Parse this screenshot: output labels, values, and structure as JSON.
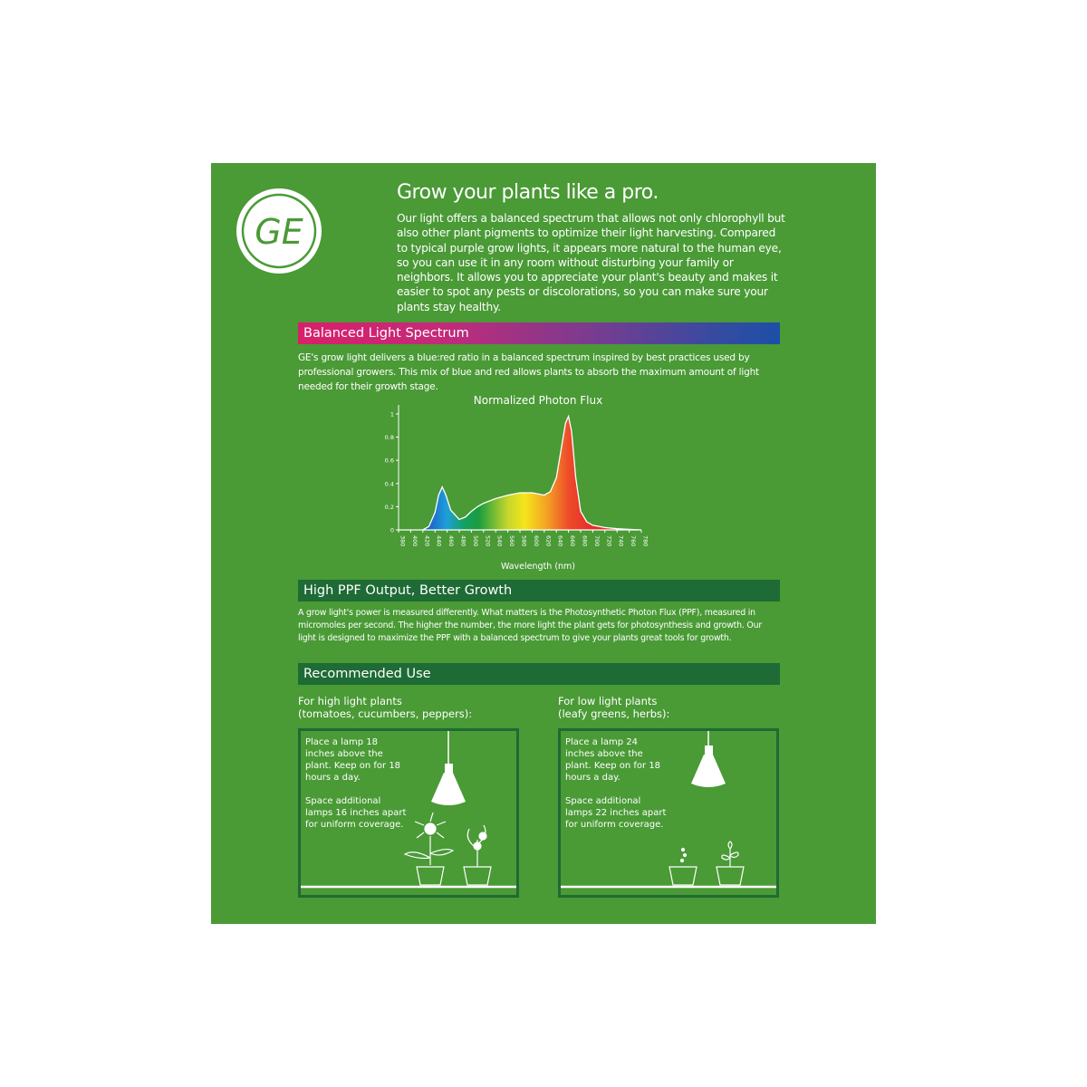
{
  "logo": {
    "text": "GE"
  },
  "header": {
    "title": "Grow your plants like a pro.",
    "intro": "Our light offers a balanced spectrum that allows not only chlorophyll but also other plant pigments to optimize their light harvesting. Compared to typical purple grow lights, it appears more natural to the human eye, so you can use it in any room without disturbing your family or neighbors. It allows you to appreciate your plant's beauty and makes it easier to spot any pests or discolorations, so you can make sure your plants stay healthy."
  },
  "spectrum": {
    "heading": "Balanced Light Spectrum",
    "text": "GE's grow light delivers a blue:red ratio in a balanced spectrum inspired by best practices used by professional growers. This mix of blue and red allows plants to absorb the maximum amount of light needed for their growth stage."
  },
  "chart_data": {
    "type": "area",
    "title": "Normalized Photon Flux",
    "xlabel": "Wavelength (nm)",
    "ylabel": "",
    "xlim": [
      380,
      780
    ],
    "ylim": [
      0,
      1.05
    ],
    "xticks": [
      380,
      400,
      420,
      440,
      460,
      480,
      500,
      520,
      540,
      560,
      580,
      600,
      620,
      640,
      660,
      680,
      700,
      720,
      740,
      760,
      780
    ],
    "yticks": [
      0,
      0.2,
      0.4,
      0.6,
      0.8,
      1
    ],
    "grid": false,
    "fill": "spectral gradient blue-green-yellow-red",
    "x": [
      380,
      420,
      430,
      440,
      446,
      452,
      458,
      466,
      480,
      490,
      500,
      510,
      520,
      540,
      560,
      580,
      600,
      620,
      630,
      640,
      648,
      655,
      660,
      665,
      672,
      680,
      690,
      700,
      720,
      740,
      760,
      780
    ],
    "y": [
      0,
      0,
      0.03,
      0.15,
      0.3,
      0.37,
      0.3,
      0.17,
      0.09,
      0.11,
      0.16,
      0.2,
      0.23,
      0.27,
      0.3,
      0.32,
      0.32,
      0.3,
      0.33,
      0.45,
      0.7,
      0.92,
      0.98,
      0.85,
      0.45,
      0.16,
      0.07,
      0.04,
      0.02,
      0.01,
      0.005,
      0
    ]
  },
  "ppf": {
    "heading": "High PPF Output, Better Growth",
    "text": "A grow light's power is measured differently. What matters is the Photosynthetic Photon Flux (PPF), measured in micromoles per second. The higher the number, the more light the plant gets for photosynthesis and growth. Our light is designed to maximize the PPF with a balanced spectrum to give your plants great tools for growth."
  },
  "use": {
    "heading": "Recommended Use",
    "high": {
      "label1": "For high light plants",
      "label2": "(tomatoes, cucumbers, peppers):",
      "line1": "Place a lamp 18 inches above the plant. Keep on for 18 hours a day.",
      "line2": "Space additional lamps 16 inches apart for uniform coverage."
    },
    "low": {
      "label1": "For low light plants",
      "label2": "(leafy greens, herbs):",
      "line1": "Place a lamp 24 inches above the plant. Keep on for 18 hours a day.",
      "line2": "Space additional lamps 22 inches apart for uniform coverage."
    }
  },
  "colors": {
    "background": "#4a9a36",
    "dark_bar": "#1e6b35"
  }
}
